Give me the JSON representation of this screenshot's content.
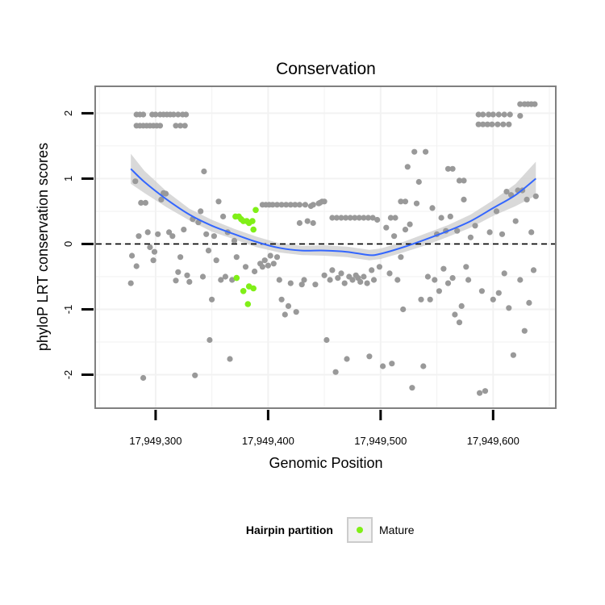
{
  "chart_data": {
    "type": "scatter",
    "title": "Conservation",
    "xlabel": "Genomic Position",
    "ylabel": "phyloP LRT conservation scores",
    "xlim": [
      17949247,
      17949655
    ],
    "ylim": [
      -2.5,
      2.4
    ],
    "x_ticks": [
      17949300,
      17949400,
      17949500,
      17949600
    ],
    "x_tick_labels": [
      "17,949,300",
      "17,949,400",
      "17,949,500",
      "17,949,600"
    ],
    "y_ticks": [
      -2,
      -1,
      0,
      1,
      2
    ],
    "y_tick_labels": [
      "-2",
      "-1",
      "0",
      "1",
      "2"
    ],
    "grid": true,
    "reference_line": {
      "y": 0,
      "style": "dashed"
    },
    "legend": {
      "title": "Hairpin partition",
      "position": "bottom",
      "entries": [
        "Mature"
      ]
    },
    "colors": {
      "points": "#999999",
      "mature": "#80ef17",
      "smooth": "#3366ff",
      "ribbon": "#cccccc",
      "panel": "#ffffff",
      "grid": "#f2f2f2"
    },
    "series": [
      {
        "name": "",
        "points": [
          [
            17949278,
            -0.6
          ],
          [
            17949279,
            -0.18
          ],
          [
            17949282,
            0.96
          ],
          [
            17949283,
            -0.34
          ],
          [
            17949285,
            0.12
          ],
          [
            17949287,
            0.63
          ],
          [
            17949289,
            -2.05
          ],
          [
            17949291,
            0.63
          ],
          [
            17949293,
            0.18
          ],
          [
            17949295,
            -0.05
          ],
          [
            17949298,
            -0.25
          ],
          [
            17949299,
            -0.12
          ],
          [
            17949302,
            0.15
          ],
          [
            17949305,
            0.68
          ],
          [
            17949307,
            0.78
          ],
          [
            17949309,
            0.77
          ],
          [
            17949312,
            0.18
          ],
          [
            17949315,
            0.12
          ],
          [
            17949318,
            -0.56
          ],
          [
            17949320,
            -0.43
          ],
          [
            17949322,
            -0.2
          ],
          [
            17949325,
            0.22
          ],
          [
            17949328,
            -0.48
          ],
          [
            17949330,
            -0.58
          ],
          [
            17949333,
            0.38
          ],
          [
            17949335,
            -2.01
          ],
          [
            17949338,
            0.33
          ],
          [
            17949340,
            0.5
          ],
          [
            17949342,
            -0.5
          ],
          [
            17949343,
            1.11
          ],
          [
            17949345,
            0.15
          ],
          [
            17949347,
            -0.1
          ],
          [
            17949348,
            -1.47
          ],
          [
            17949350,
            -0.85
          ],
          [
            17949352,
            0.12
          ],
          [
            17949354,
            -0.25
          ],
          [
            17949356,
            0.65
          ],
          [
            17949358,
            -0.55
          ],
          [
            17949360,
            0.42
          ],
          [
            17949362,
            -0.5
          ],
          [
            17949364,
            0.18
          ],
          [
            17949366,
            -1.76
          ],
          [
            17949368,
            -0.55
          ],
          [
            17949370,
            0.05
          ],
          [
            17949372,
            -0.2
          ],
          [
            17949380,
            -0.35
          ],
          [
            17949388,
            -0.42
          ],
          [
            17949393,
            -0.3
          ],
          [
            17949395,
            -0.35
          ],
          [
            17949397,
            -0.25
          ],
          [
            17949400,
            -0.33
          ],
          [
            17949402,
            -0.18
          ],
          [
            17949405,
            -0.3
          ],
          [
            17949408,
            -0.2
          ],
          [
            17949410,
            -0.55
          ],
          [
            17949412,
            -0.85
          ],
          [
            17949415,
            -1.08
          ],
          [
            17949418,
            -0.95
          ],
          [
            17949420,
            -0.6
          ],
          [
            17949425,
            -1.04
          ],
          [
            17949428,
            0.32
          ],
          [
            17949430,
            -0.62
          ],
          [
            17949432,
            -0.55
          ],
          [
            17949435,
            0.35
          ],
          [
            17949438,
            0.58
          ],
          [
            17949440,
            0.32
          ],
          [
            17949442,
            -0.62
          ],
          [
            17949445,
            0.62
          ],
          [
            17949448,
            0.65
          ],
          [
            17949450,
            -0.48
          ],
          [
            17949452,
            -1.47
          ],
          [
            17949455,
            -0.55
          ],
          [
            17949457,
            -0.4
          ],
          [
            17949460,
            -1.96
          ],
          [
            17949462,
            -0.52
          ],
          [
            17949465,
            -0.45
          ],
          [
            17949468,
            -0.6
          ],
          [
            17949470,
            -1.76
          ],
          [
            17949472,
            -0.5
          ],
          [
            17949475,
            -0.55
          ],
          [
            17949478,
            -0.48
          ],
          [
            17949480,
            -0.52
          ],
          [
            17949482,
            -0.58
          ],
          [
            17949485,
            -0.5
          ],
          [
            17949488,
            -0.6
          ],
          [
            17949490,
            -1.72
          ],
          [
            17949492,
            -0.4
          ],
          [
            17949494,
            -0.55
          ],
          [
            17949497,
            0.37
          ],
          [
            17949499,
            -0.35
          ],
          [
            17949502,
            -1.87
          ],
          [
            17949505,
            0.25
          ],
          [
            17949508,
            -0.45
          ],
          [
            17949510,
            -1.83
          ],
          [
            17949512,
            0.12
          ],
          [
            17949515,
            -0.55
          ],
          [
            17949518,
            -0.2
          ],
          [
            17949520,
            -1.0
          ],
          [
            17949522,
            0.22
          ],
          [
            17949524,
            1.18
          ],
          [
            17949526,
            0.3
          ],
          [
            17949528,
            -2.2
          ],
          [
            17949530,
            1.41
          ],
          [
            17949532,
            0.62
          ],
          [
            17949534,
            0.95
          ],
          [
            17949536,
            -0.85
          ],
          [
            17949538,
            -1.87
          ],
          [
            17949540,
            1.41
          ],
          [
            17949542,
            -0.5
          ],
          [
            17949544,
            -0.85
          ],
          [
            17949546,
            0.55
          ],
          [
            17949548,
            -0.55
          ],
          [
            17949550,
            0.15
          ],
          [
            17949552,
            -0.72
          ],
          [
            17949554,
            0.4
          ],
          [
            17949556,
            -0.38
          ],
          [
            17949558,
            0.2
          ],
          [
            17949560,
            -0.6
          ],
          [
            17949562,
            0.42
          ],
          [
            17949564,
            -0.52
          ],
          [
            17949566,
            -1.08
          ],
          [
            17949568,
            0.2
          ],
          [
            17949570,
            -1.2
          ],
          [
            17949572,
            -0.95
          ],
          [
            17949574,
            0.68
          ],
          [
            17949576,
            -0.35
          ],
          [
            17949578,
            -0.55
          ],
          [
            17949580,
            0.1
          ],
          [
            17949584,
            0.28
          ],
          [
            17949588,
            -2.28
          ],
          [
            17949590,
            -0.72
          ],
          [
            17949593,
            -2.25
          ],
          [
            17949597,
            0.18
          ],
          [
            17949600,
            -0.85
          ],
          [
            17949603,
            0.5
          ],
          [
            17949605,
            -0.75
          ],
          [
            17949608,
            0.15
          ],
          [
            17949610,
            -0.45
          ],
          [
            17949612,
            0.8
          ],
          [
            17949614,
            -0.98
          ],
          [
            17949616,
            0.75
          ],
          [
            17949618,
            -1.7
          ],
          [
            17949620,
            0.35
          ],
          [
            17949622,
            0.82
          ],
          [
            17949624,
            -0.55
          ],
          [
            17949626,
            0.82
          ],
          [
            17949628,
            -1.33
          ],
          [
            17949630,
            0.68
          ],
          [
            17949632,
            -0.9
          ],
          [
            17949634,
            0.18
          ],
          [
            17949636,
            -0.4
          ],
          [
            17949638,
            0.73
          ],
          [
            17949283,
            1.98
          ],
          [
            17949286,
            1.98
          ],
          [
            17949289,
            1.98
          ],
          [
            17949297,
            1.98
          ],
          [
            17949300,
            1.98
          ],
          [
            17949304,
            1.98
          ],
          [
            17949307,
            1.98
          ],
          [
            17949310,
            1.98
          ],
          [
            17949313,
            1.98
          ],
          [
            17949316,
            1.98
          ],
          [
            17949320,
            1.98
          ],
          [
            17949324,
            1.98
          ],
          [
            17949327,
            1.98
          ],
          [
            17949283,
            1.81
          ],
          [
            17949286,
            1.81
          ],
          [
            17949289,
            1.81
          ],
          [
            17949292,
            1.81
          ],
          [
            17949295,
            1.81
          ],
          [
            17949298,
            1.81
          ],
          [
            17949301,
            1.81
          ],
          [
            17949304,
            1.81
          ],
          [
            17949318,
            1.81
          ],
          [
            17949322,
            1.81
          ],
          [
            17949326,
            1.81
          ],
          [
            17949587,
            1.98
          ],
          [
            17949591,
            1.98
          ],
          [
            17949596,
            1.98
          ],
          [
            17949600,
            1.98
          ],
          [
            17949605,
            1.98
          ],
          [
            17949610,
            1.98
          ],
          [
            17949615,
            1.98
          ],
          [
            17949587,
            1.83
          ],
          [
            17949591,
            1.83
          ],
          [
            17949595,
            1.83
          ],
          [
            17949599,
            1.83
          ],
          [
            17949604,
            1.83
          ],
          [
            17949609,
            1.83
          ],
          [
            17949614,
            1.83
          ],
          [
            17949624,
            2.14
          ],
          [
            17949628,
            2.14
          ],
          [
            17949631,
            2.14
          ],
          [
            17949634,
            2.14
          ],
          [
            17949637,
            2.14
          ],
          [
            17949624,
            1.96
          ],
          [
            17949395,
            0.6
          ],
          [
            17949398,
            0.6
          ],
          [
            17949401,
            0.6
          ],
          [
            17949404,
            0.6
          ],
          [
            17949408,
            0.6
          ],
          [
            17949412,
            0.6
          ],
          [
            17949416,
            0.6
          ],
          [
            17949420,
            0.6
          ],
          [
            17949424,
            0.6
          ],
          [
            17949428,
            0.6
          ],
          [
            17949433,
            0.6
          ],
          [
            17949440,
            0.6
          ],
          [
            17949446,
            0.63
          ],
          [
            17949450,
            0.65
          ],
          [
            17949457,
            0.4
          ],
          [
            17949461,
            0.4
          ],
          [
            17949465,
            0.4
          ],
          [
            17949469,
            0.4
          ],
          [
            17949473,
            0.4
          ],
          [
            17949477,
            0.4
          ],
          [
            17949481,
            0.4
          ],
          [
            17949485,
            0.4
          ],
          [
            17949489,
            0.4
          ],
          [
            17949493,
            0.4
          ],
          [
            17949509,
            0.4
          ],
          [
            17949513,
            0.4
          ],
          [
            17949560,
            1.15
          ],
          [
            17949564,
            1.15
          ],
          [
            17949570,
            0.97
          ],
          [
            17949574,
            0.97
          ],
          [
            17949518,
            0.65
          ],
          [
            17949522,
            0.65
          ]
        ]
      },
      {
        "name": "Mature",
        "points": [
          [
            17949371,
            0.42
          ],
          [
            17949374,
            0.42
          ],
          [
            17949376,
            0.38
          ],
          [
            17949378,
            0.35
          ],
          [
            17949381,
            0.35
          ],
          [
            17949383,
            0.32
          ],
          [
            17949386,
            0.35
          ],
          [
            17949387,
            0.22
          ],
          [
            17949389,
            0.52
          ],
          [
            17949372,
            -0.52
          ],
          [
            17949378,
            -0.72
          ],
          [
            17949383,
            -0.65
          ],
          [
            17949387,
            -0.68
          ],
          [
            17949382,
            -0.92
          ]
        ]
      }
    ],
    "smooth": {
      "x": [
        17949278,
        17949290,
        17949310,
        17949330,
        17949350,
        17949370,
        17949390,
        17949410,
        17949430,
        17949450,
        17949470,
        17949490,
        17949500,
        17949520,
        17949540,
        17949560,
        17949580,
        17949600,
        17949620,
        17949638
      ],
      "y": [
        1.15,
        0.95,
        0.68,
        0.45,
        0.28,
        0.15,
        0.03,
        -0.06,
        -0.1,
        -0.1,
        -0.12,
        -0.17,
        -0.15,
        -0.05,
        0.07,
        0.2,
        0.35,
        0.55,
        0.75,
        1.0
      ],
      "lower": [
        0.92,
        0.78,
        0.56,
        0.36,
        0.19,
        0.07,
        -0.05,
        -0.13,
        -0.17,
        -0.18,
        -0.2,
        -0.25,
        -0.23,
        -0.13,
        -0.02,
        0.11,
        0.25,
        0.43,
        0.58,
        0.74
      ],
      "upper": [
        1.38,
        1.12,
        0.8,
        0.54,
        0.37,
        0.23,
        0.11,
        0.01,
        -0.03,
        -0.02,
        -0.04,
        -0.09,
        -0.07,
        0.03,
        0.16,
        0.29,
        0.45,
        0.67,
        0.92,
        1.26
      ]
    }
  }
}
